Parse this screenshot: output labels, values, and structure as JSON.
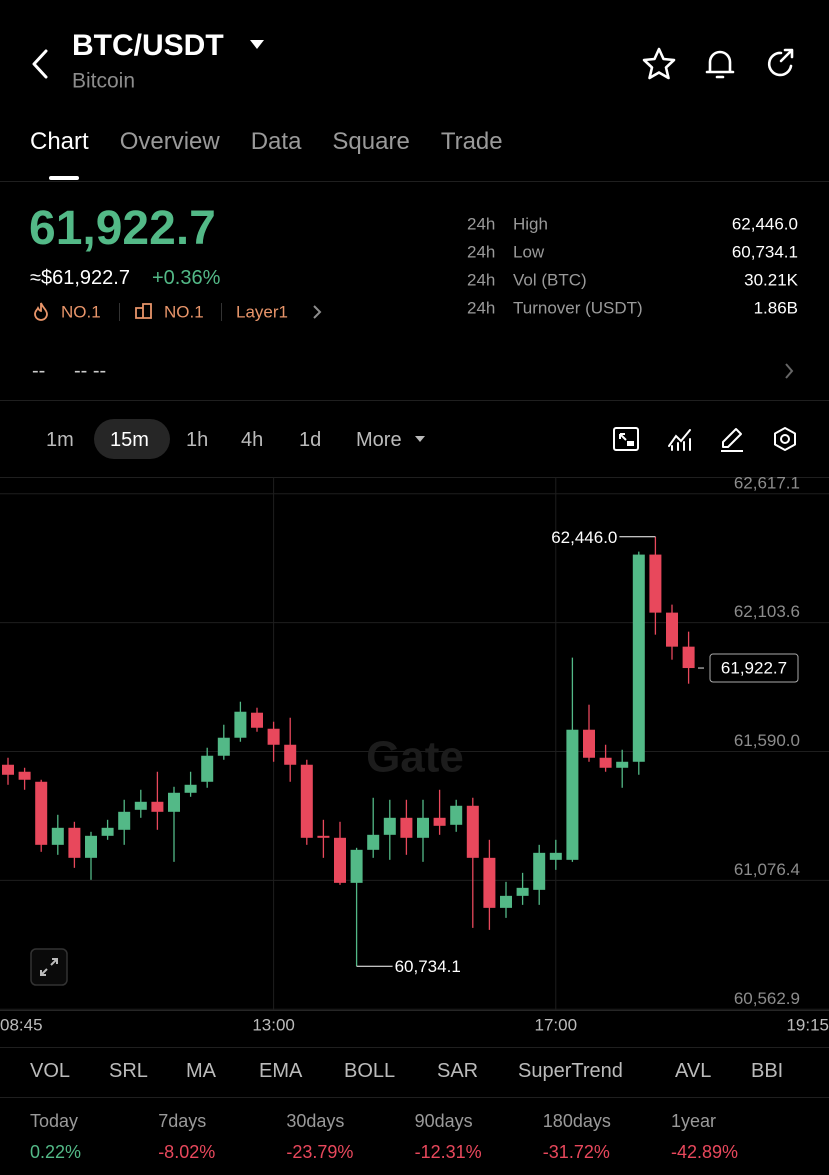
{
  "header": {
    "symbol": "BTC/USDT",
    "name": "Bitcoin"
  },
  "tabs": [
    "Chart",
    "Overview",
    "Data",
    "Square",
    "Trade"
  ],
  "price": {
    "last": "61,922.7",
    "usd": "≈$61,922.7",
    "change": "+0.36%",
    "badges": [
      "NO.1",
      "NO.1",
      "Layer1"
    ]
  },
  "stats": [
    {
      "period": "24h",
      "label": "High",
      "value": "62,446.0"
    },
    {
      "period": "24h",
      "label": "Low",
      "value": "60,734.1"
    },
    {
      "period": "24h",
      "label": "Vol (BTC)",
      "value": "30.21K"
    },
    {
      "period": "24h",
      "label": "Turnover (USDT)",
      "value": "1.86B"
    }
  ],
  "dashes": [
    "--",
    "-- --"
  ],
  "intervals": [
    "1m",
    "15m",
    "1h",
    "4h",
    "1d",
    "More"
  ],
  "indicators": [
    "VOL",
    "SRL",
    "MA",
    "EMA",
    "BOLL",
    "SAR",
    "SuperTrend",
    "AVL",
    "BBI"
  ],
  "performance": [
    {
      "label": "Today",
      "value": "0.22%"
    },
    {
      "label": "7days",
      "value": "-8.02%"
    },
    {
      "label": "30days",
      "value": "-23.79%"
    },
    {
      "label": "90days",
      "value": "-12.31%"
    },
    {
      "label": "180days",
      "value": "-31.72%"
    },
    {
      "label": "1year",
      "value": "-42.89%"
    }
  ],
  "chart_data": {
    "type": "candlestick",
    "watermark": "Gate",
    "up_color": "#53b987",
    "down_color": "#e8485c",
    "categories": [
      null,
      null,
      null,
      null,
      null,
      null,
      null,
      null,
      null,
      null,
      null,
      null,
      null,
      null,
      null,
      null,
      "13:00",
      null,
      null,
      null,
      null,
      null,
      null,
      null,
      null,
      null,
      null,
      null,
      null,
      null,
      null,
      null,
      null,
      "17:00",
      null,
      null,
      null,
      null,
      null,
      null,
      null,
      null
    ],
    "x_edge_labels": [
      "08:45",
      "19:15"
    ],
    "open": [
      61537.3,
      61509.4,
      61469.5,
      61218.2,
      61286.0,
      61166.4,
      61254.1,
      61278.1,
      61357.8,
      61389.7,
      61349.8,
      61425.6,
      61469.5,
      61573.2,
      61645.0,
      61744.7,
      61680.8,
      61617.0,
      61537.3,
      61254.1,
      61246.2,
      61066.7,
      61198.3,
      61258.1,
      61325.9,
      61246.2,
      61325.9,
      61298.0,
      61373.8,
      61166.4,
      60967.0,
      61014.9,
      61038.8,
      61158.4,
      61158.4,
      61676.9,
      61565.2,
      61525.3,
      61549.2,
      62374.8,
      62143.5,
      62007.9
    ],
    "high": [
      61565.2,
      61525.3,
      61477.5,
      61337.9,
      61310.0,
      61270.1,
      61317.9,
      61397.7,
      61437.6,
      61509.4,
      61449.5,
      61509.4,
      61605.1,
      61696.8,
      61788.5,
      61764.6,
      61708.8,
      61724.7,
      61557.2,
      61317.9,
      61310.0,
      61206.3,
      61405.7,
      61397.7,
      61397.7,
      61397.7,
      61437.6,
      61397.7,
      61405.7,
      61238.2,
      61070.7,
      61106.6,
      61218.2,
      61238.2,
      61964.0,
      61776.6,
      61617.0,
      61597.1,
      62386.7,
      62446.0,
      62175.4,
      62067.7
    ],
    "low": [
      61457.5,
      61437.6,
      61190.3,
      61178.4,
      61126.5,
      61078.7,
      61238.2,
      61218.2,
      61325.9,
      61278.1,
      61150.4,
      61409.7,
      61445.6,
      61557.2,
      61629.0,
      61668.9,
      61549.2,
      61469.5,
      61218.2,
      61166.4,
      61058.7,
      60734.1,
      61166.4,
      61158.4,
      61178.4,
      61150.4,
      61258.1,
      61270.1,
      60887.2,
      60879.3,
      60927.1,
      60979.0,
      60979.0,
      61118.5,
      61150.4,
      61549.2,
      61509.4,
      61445.6,
      61497.4,
      62055.7,
      61956.0,
      61860.3
    ],
    "close": [
      61497.4,
      61477.5,
      61218.2,
      61286.0,
      61166.4,
      61254.1,
      61286.0,
      61349.8,
      61389.7,
      61349.8,
      61425.6,
      61457.5,
      61573.2,
      61645.0,
      61748.6,
      61684.8,
      61617.0,
      61537.3,
      61246.2,
      61246.2,
      61066.7,
      61198.3,
      61258.1,
      61325.9,
      61246.2,
      61325.9,
      61294.0,
      61373.8,
      61166.4,
      60967.0,
      61014.9,
      61046.8,
      61186.3,
      61186.3,
      61676.9,
      61565.2,
      61525.3,
      61549.2,
      62374.8,
      62143.5,
      62007.9,
      61922.7
    ],
    "max_label": "62,446.0",
    "min_label": "60,734.1",
    "last_label": "61,922.7",
    "ylim": [
      60560,
      62680
    ],
    "yticks": [
      {
        "value": 62617.1,
        "label": "62,617.1"
      },
      {
        "value": 62103.6,
        "label": "62,103.6"
      },
      {
        "value": 61590.0,
        "label": "61,590.0"
      },
      {
        "value": 61076.4,
        "label": "61,076.4"
      },
      {
        "value": 60562.9,
        "label": "60,562.9"
      }
    ],
    "grid": true
  }
}
